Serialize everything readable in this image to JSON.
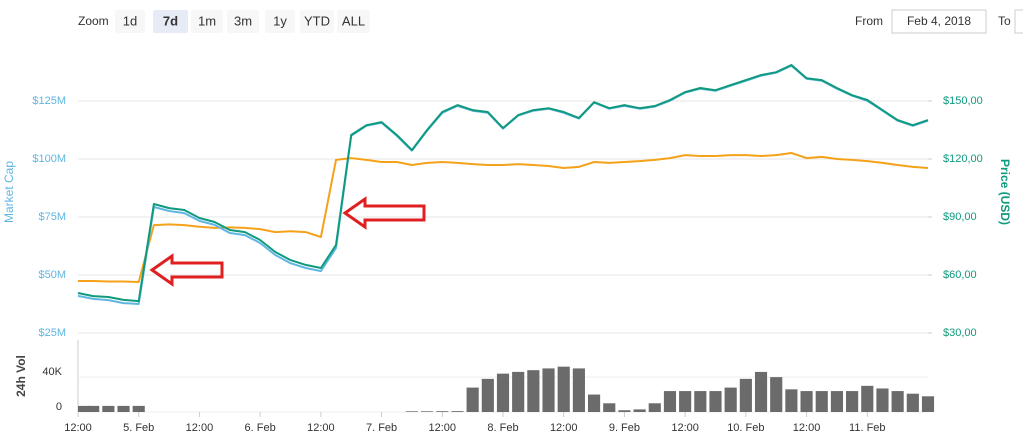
{
  "toolbar": {
    "zoom_label": "Zoom",
    "zoom_options": [
      {
        "label": "1d",
        "active": false
      },
      {
        "label": "7d",
        "active": true
      },
      {
        "label": "1m",
        "active": false
      },
      {
        "label": "3m",
        "active": false
      },
      {
        "label": "1y",
        "active": false
      },
      {
        "label": "YTD",
        "active": false
      },
      {
        "label": "ALL",
        "active": false
      }
    ],
    "from_label": "From",
    "from_value": "Feb 4, 2018",
    "to_label": "To"
  },
  "chart_data": [
    {
      "type": "line",
      "ylabel": "Market Cap",
      "y2label": "Price (USD)",
      "x": [
        0,
        3,
        6,
        9,
        12,
        15,
        18,
        21,
        24,
        27,
        30,
        33,
        36,
        39,
        42,
        45,
        48,
        51,
        54,
        57,
        60,
        63,
        66,
        69,
        72,
        75,
        78,
        81,
        84,
        87,
        90,
        93,
        96,
        99,
        102,
        105,
        108,
        111,
        114,
        117,
        120,
        123,
        126,
        129,
        132,
        135,
        138,
        141,
        144,
        147,
        150,
        153,
        156,
        159,
        162,
        165,
        168
      ],
      "xlim": [
        0,
        168
      ],
      "ylim": [
        25,
        150
      ],
      "yticks": [
        {
          "value": 25,
          "label": "$25M"
        },
        {
          "value": 50,
          "label": "$50M"
        },
        {
          "value": 75,
          "label": "$75M"
        },
        {
          "value": 100,
          "label": "$100M"
        },
        {
          "value": 125,
          "label": "$125M"
        }
      ],
      "y2lim": [
        30,
        180
      ],
      "y2ticks": [
        {
          "value": 30,
          "label": "$30,00"
        },
        {
          "value": 60,
          "label": "$60,00"
        },
        {
          "value": 90,
          "label": "$90,00"
        },
        {
          "value": 120,
          "label": "$120,00"
        },
        {
          "value": 150,
          "label": "$150,00"
        }
      ],
      "grid": true,
      "series": [
        {
          "color": "#f5a21b",
          "values": [
            47.4,
            47.4,
            47.2,
            47.2,
            47.0,
            71.5,
            71.8,
            71.5,
            70.8,
            70.3,
            70.5,
            70.3,
            69.8,
            68.5,
            68.9,
            68.5,
            66.4,
            99.6,
            100.4,
            99.6,
            98.7,
            98.7,
            97.4,
            98.3,
            98.7,
            98.3,
            97.8,
            97.4,
            97.4,
            97.8,
            97.4,
            97.0,
            96.1,
            96.6,
            98.7,
            98.3,
            98.7,
            99.1,
            99.6,
            100.4,
            101.7,
            101.3,
            101.3,
            101.7,
            101.7,
            101.3,
            101.7,
            102.6,
            100.4,
            100.9,
            100.0,
            99.6,
            99.1,
            98.3,
            97.4,
            96.6,
            96.1
          ]
        },
        {
          "color": "#5fb6e3",
          "values": [
            41.0,
            39.7,
            39.2,
            37.9,
            37.5,
            79.3,
            77.6,
            76.7,
            73.3,
            71.6,
            68.1,
            67.2,
            63.8,
            58.6,
            55.1,
            53.0,
            51.7,
            61.6,
            110.0,
            114.3,
            115.6,
            110.0,
            103.6,
            112.2,
            119.9,
            122.9,
            120.8,
            119.9,
            113.1,
            118.7,
            120.8,
            121.7,
            119.9,
            117.4,
            124.3,
            121.7,
            122.9,
            121.7,
            122.6,
            125.1,
            128.6,
            130.3,
            129.4,
            131.6,
            133.7,
            135.9,
            137.2,
            140.2,
            134.6,
            133.7,
            130.3,
            127.3,
            125.1,
            120.8,
            116.5,
            114.3,
            116.5
          ]
        },
        {
          "color": "#0f9a7d",
          "axis": "y2",
          "values": [
            50.7,
            49.1,
            48.6,
            47.1,
            46.5,
            96.7,
            94.6,
            93.6,
            89.5,
            87.4,
            83.3,
            82.2,
            78.1,
            71.9,
            67.7,
            65.2,
            63.6,
            75.5,
            132.4,
            137.5,
            139.1,
            132.4,
            124.6,
            135.0,
            144.3,
            147.9,
            145.3,
            144.3,
            136.0,
            142.7,
            145.3,
            146.3,
            144.3,
            141.2,
            149.4,
            146.3,
            147.9,
            146.3,
            147.4,
            150.5,
            154.6,
            156.7,
            155.6,
            158.2,
            160.8,
            163.4,
            164.9,
            168.6,
            161.8,
            160.8,
            156.7,
            153.0,
            150.5,
            145.3,
            140.1,
            137.5,
            140.1
          ]
        }
      ]
    },
    {
      "type": "bar",
      "ylabel": "24h Vol",
      "color": "#6b6b6b",
      "x": [
        0,
        3,
        6,
        9,
        12,
        15,
        18,
        21,
        24,
        27,
        30,
        33,
        36,
        39,
        42,
        45,
        48,
        51,
        54,
        57,
        60,
        63,
        66,
        69,
        72,
        75,
        78,
        81,
        84,
        87,
        90,
        93,
        96,
        99,
        102,
        105,
        108,
        111,
        114,
        117,
        120,
        123,
        126,
        129,
        132,
        135,
        138,
        141,
        144,
        147,
        150,
        153,
        156,
        159,
        162,
        165,
        168
      ],
      "values": [
        7000,
        7000,
        7000,
        7000,
        7000,
        null,
        null,
        null,
        null,
        null,
        null,
        null,
        null,
        null,
        null,
        null,
        null,
        null,
        null,
        null,
        null,
        null,
        800,
        800,
        900,
        1000,
        28000,
        38000,
        44000,
        46000,
        48000,
        50000,
        52000,
        50000,
        20000,
        10000,
        2000,
        3000,
        10000,
        24000,
        24000,
        24000,
        24000,
        28000,
        38000,
        46000,
        40000,
        26000,
        24000,
        24000,
        24000,
        24000,
        30000,
        27000,
        24000,
        21000,
        18000
      ],
      "xlim": [
        0,
        168
      ],
      "xticks": [
        {
          "value": 0,
          "label": "12:00"
        },
        {
          "value": 12,
          "label": "5. Feb"
        },
        {
          "value": 24,
          "label": "12:00"
        },
        {
          "value": 36,
          "label": "6. Feb"
        },
        {
          "value": 48,
          "label": "12:00"
        },
        {
          "value": 60,
          "label": "7. Feb"
        },
        {
          "value": 72,
          "label": "12:00"
        },
        {
          "value": 84,
          "label": "8. Feb"
        },
        {
          "value": 96,
          "label": "12:00"
        },
        {
          "value": 108,
          "label": "9. Feb"
        },
        {
          "value": 120,
          "label": "12:00"
        },
        {
          "value": 132,
          "label": "10. Feb"
        },
        {
          "value": 144,
          "label": "12:00"
        },
        {
          "value": 156,
          "label": "11. Feb"
        }
      ],
      "ylim": [
        0,
        78000
      ],
      "yticks": [
        0,
        {
          "value": 40000,
          "label": "40K"
        }
      ]
    }
  ]
}
